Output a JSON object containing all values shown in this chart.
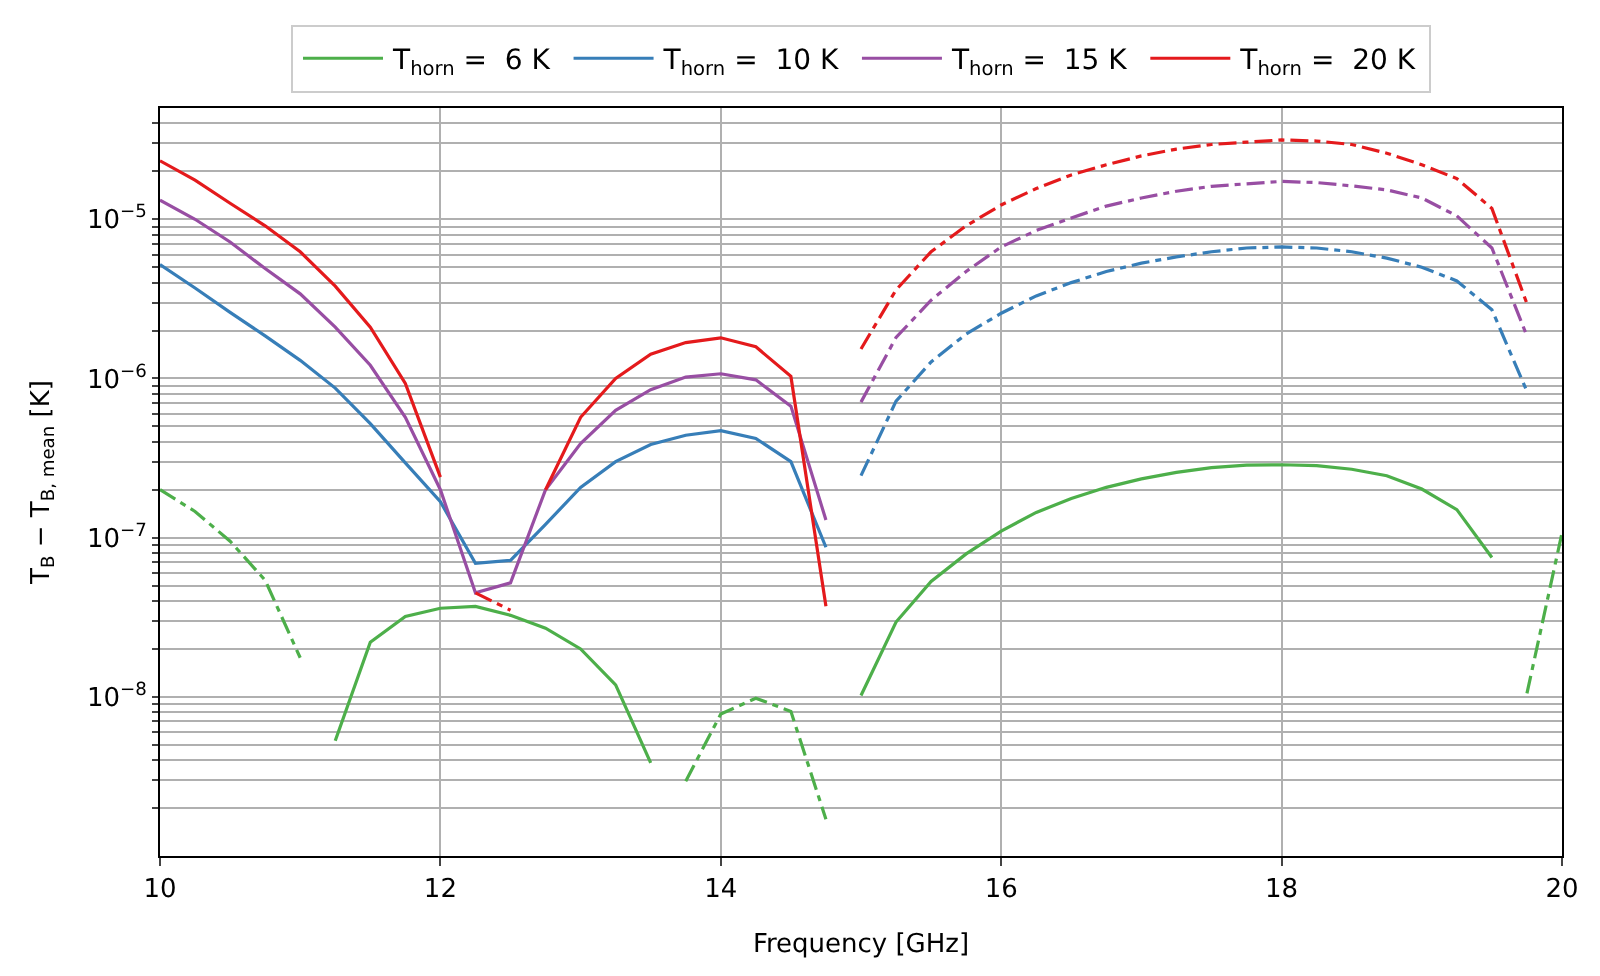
{
  "chart_data": {
    "type": "line",
    "xlabel": "Frequency [GHz]",
    "ylabel": "T$_{B}$ − T$_{B, mean}$ [K]",
    "xlim": [
      10,
      20
    ],
    "xticks": [
      10,
      12,
      14,
      16,
      18,
      20
    ],
    "ylim": [
      1e-09,
      5e-05
    ],
    "log": "y",
    "grid": true,
    "legend": "top",
    "marker": "none",
    "yticks": [
      {
        "value": 2e-09,
        "label": null
      },
      {
        "value": 3e-09,
        "label": null
      },
      {
        "value": 4e-09,
        "label": null
      },
      {
        "value": 5e-09,
        "label": null
      },
      {
        "value": 6e-09,
        "label": null
      },
      {
        "value": 7e-09,
        "label": null
      },
      {
        "value": 8e-09,
        "label": null
      },
      {
        "value": 9e-09,
        "label": null
      },
      {
        "value": 1e-08,
        "label": "10$^{−8}$"
      },
      {
        "value": 2e-08,
        "label": null
      },
      {
        "value": 3e-08,
        "label": null
      },
      {
        "value": 4e-08,
        "label": null
      },
      {
        "value": 5e-08,
        "label": null
      },
      {
        "value": 6e-08,
        "label": null
      },
      {
        "value": 7e-08,
        "label": null
      },
      {
        "value": 8e-08,
        "label": null
      },
      {
        "value": 9e-08,
        "label": null
      },
      {
        "value": 1e-07,
        "label": "10$^{−7}$"
      },
      {
        "value": 2e-07,
        "label": null
      },
      {
        "value": 3e-07,
        "label": null
      },
      {
        "value": 4e-07,
        "label": null
      },
      {
        "value": 5e-07,
        "label": null
      },
      {
        "value": 6e-07,
        "label": null
      },
      {
        "value": 7e-07,
        "label": null
      },
      {
        "value": 8e-07,
        "label": null
      },
      {
        "value": 9e-07,
        "label": null
      },
      {
        "value": 1e-06,
        "label": "10$^{−6}$"
      },
      {
        "value": 2e-06,
        "label": null
      },
      {
        "value": 3e-06,
        "label": null
      },
      {
        "value": 4e-06,
        "label": null
      },
      {
        "value": 5e-06,
        "label": null
      },
      {
        "value": 6e-06,
        "label": null
      },
      {
        "value": 7e-06,
        "label": null
      },
      {
        "value": 8e-06,
        "label": null
      },
      {
        "value": 9e-06,
        "label": null
      },
      {
        "value": 1e-05,
        "label": "10$^{−5}$"
      },
      {
        "value": 2e-05,
        "label": null
      },
      {
        "value": 3e-05,
        "label": null
      },
      {
        "value": 4e-05,
        "label": null
      }
    ],
    "series": [
      {
        "name": "T$_{horn}$ =  6 K",
        "color": "#4daf4a",
        "line_style": "solid",
        "x": [
          11.25,
          11.5,
          11.75,
          12,
          12.25,
          12.5,
          12.75,
          13,
          13.25,
          13.5
        ],
        "values": [
          5.3e-09,
          2.2e-08,
          3.2e-08,
          3.6e-08,
          3.7e-08,
          3.25e-08,
          2.7e-08,
          2e-08,
          1.19e-08,
          3.85e-09
        ]
      },
      {
        "color": "#4daf4a",
        "line_style": "dashdot",
        "x": [
          10,
          10.25,
          10.5,
          10.75,
          11
        ],
        "values": [
          2e-07,
          1.46e-07,
          9.5e-08,
          5.4e-08,
          1.76e-08
        ]
      },
      {
        "color": "#4daf4a",
        "line_style": "dashdot",
        "x": [
          13.75,
          14,
          14.25,
          14.5,
          14.75
        ],
        "values": [
          2.95e-09,
          7.8e-09,
          9.8e-09,
          8.1e-09,
          1.7e-09
        ]
      },
      {
        "color": "#4daf4a",
        "line_style": "solid",
        "x": [
          15,
          15.25,
          15.5,
          15.75,
          16,
          16.25,
          16.5,
          16.75,
          17,
          17.25,
          17.5,
          17.75,
          18,
          18.25,
          18.5,
          18.75,
          19,
          19.25,
          19.5
        ],
        "values": [
          1.02e-08,
          2.95e-08,
          5.3e-08,
          7.9e-08,
          1.1e-07,
          1.44e-07,
          1.76e-07,
          2.07e-07,
          2.34e-07,
          2.57e-07,
          2.75e-07,
          2.85e-07,
          2.87e-07,
          2.83e-07,
          2.69e-07,
          2.45e-07,
          2.02e-07,
          1.5e-07,
          7.5e-08
        ]
      },
      {
        "color": "#4daf4a",
        "line_style": "dashdot",
        "x": [
          19.75,
          20
        ],
        "values": [
          1.05e-08,
          1.07e-07
        ]
      },
      {
        "name": "T$_{horn}$ =  10 K",
        "color": "#377eb8",
        "line_style": "solid",
        "x": [
          10,
          10.25,
          10.5,
          10.75,
          11,
          11.25,
          11.5,
          11.75,
          12,
          12.25,
          12.5,
          12.75,
          13,
          13.25,
          13.5,
          13.75,
          14,
          14.25,
          14.5,
          14.75
        ],
        "values": [
          5.2e-06,
          3.7e-06,
          2.6e-06,
          1.85e-06,
          1.3e-06,
          8.7e-07,
          5.2e-07,
          2.95e-07,
          1.68e-07,
          6.9e-08,
          7.2e-08,
          1.21e-07,
          2.07e-07,
          3e-07,
          3.85e-07,
          4.4e-07,
          4.7e-07,
          4.2e-07,
          3e-07,
          8.7e-08
        ]
      },
      {
        "color": "#377eb8",
        "line_style": "dashdot",
        "x": [
          15,
          15.25,
          15.5,
          15.75,
          16,
          16.25,
          16.5,
          16.75,
          17,
          17.25,
          17.5,
          17.75,
          18,
          18.25,
          18.5,
          18.75,
          19,
          19.25,
          19.5,
          19.75
        ],
        "values": [
          2.45e-07,
          7.2e-07,
          1.27e-06,
          1.9e-06,
          2.57e-06,
          3.3e-06,
          4e-06,
          4.7e-06,
          5.3e-06,
          5.8e-06,
          6.25e-06,
          6.6e-06,
          6.7e-06,
          6.6e-06,
          6.25e-06,
          5.7e-06,
          5e-06,
          4.1e-06,
          2.7e-06,
          8.3e-07
        ]
      },
      {
        "name": "T$_{horn}$ =  15 K",
        "color": "#984ea3",
        "line_style": "solid",
        "x": [
          10,
          10.25,
          10.5,
          10.75,
          11,
          11.25,
          11.5,
          11.75,
          12,
          12.25,
          12.5,
          12.75,
          13,
          13.25,
          13.5,
          13.75,
          14,
          14.25,
          14.5,
          14.75
        ],
        "values": [
          1.32e-05,
          1e-05,
          7.2e-06,
          4.9e-06,
          3.4e-06,
          2.1e-06,
          1.21e-06,
          5.7e-07,
          2e-07,
          4.5e-08,
          5.2e-08,
          2e-07,
          3.9e-07,
          6.3e-07,
          8.5e-07,
          1.02e-06,
          1.07e-06,
          9.8e-07,
          6.7e-07,
          1.29e-07
        ]
      },
      {
        "color": "#984ea3",
        "line_style": "dashdot",
        "x": [
          15,
          15.25,
          15.5,
          15.75,
          16,
          16.25,
          16.5,
          16.75,
          17,
          17.25,
          17.5,
          17.75,
          18,
          18.25,
          18.5,
          18.75,
          19,
          19.25,
          19.5,
          19.75
        ],
        "values": [
          7.1e-07,
          1.81e-06,
          3.1e-06,
          4.7e-06,
          6.7e-06,
          8.5e-06,
          1.02e-05,
          1.21e-05,
          1.36e-05,
          1.5e-05,
          1.61e-05,
          1.67e-05,
          1.73e-05,
          1.7e-05,
          1.62e-05,
          1.53e-05,
          1.36e-05,
          1.05e-05,
          6.6e-06,
          1.85e-06
        ]
      },
      {
        "name": "T$_{horn}$ =  20 K",
        "color": "#e41a1c",
        "line_style": "solid",
        "x": [
          10,
          10.25,
          10.5,
          10.75,
          11,
          11.25,
          11.5,
          11.75,
          12
        ],
        "values": [
          2.33e-05,
          1.76e-05,
          1.26e-05,
          9.1e-06,
          6.25e-06,
          3.8e-06,
          2.1e-06,
          9.3e-07,
          2.4e-07
        ]
      },
      {
        "color": "#e41a1c",
        "line_style": "dashdot",
        "x": [
          12.25,
          12.5
        ],
        "values": [
          4.5e-08,
          3.5e-08
        ]
      },
      {
        "color": "#e41a1c",
        "line_style": "solid",
        "x": [
          12.75,
          13,
          13.25,
          13.5,
          13.75,
          14,
          14.25,
          14.5,
          14.75
        ],
        "values": [
          2e-07,
          5.7e-07,
          1e-06,
          1.42e-06,
          1.68e-06,
          1.8e-06,
          1.58e-06,
          1.03e-06,
          3.7e-08
        ]
      },
      {
        "color": "#e41a1c",
        "line_style": "dashdot",
        "x": [
          15,
          15.25,
          15.5,
          15.75,
          16,
          16.25,
          16.5,
          16.75,
          17,
          17.25,
          17.5,
          17.75,
          18,
          18.25,
          18.5,
          18.75,
          19,
          19.25,
          19.5,
          19.75
        ],
        "values": [
          1.53e-06,
          3.6e-06,
          6.25e-06,
          9.1e-06,
          1.23e-05,
          1.56e-05,
          1.9e-05,
          2.2e-05,
          2.5e-05,
          2.76e-05,
          2.95e-05,
          3.05e-05,
          3.15e-05,
          3.1e-05,
          2.95e-05,
          2.6e-05,
          2.2e-05,
          1.8e-05,
          1.17e-05,
          2.95e-06
        ]
      }
    ]
  }
}
